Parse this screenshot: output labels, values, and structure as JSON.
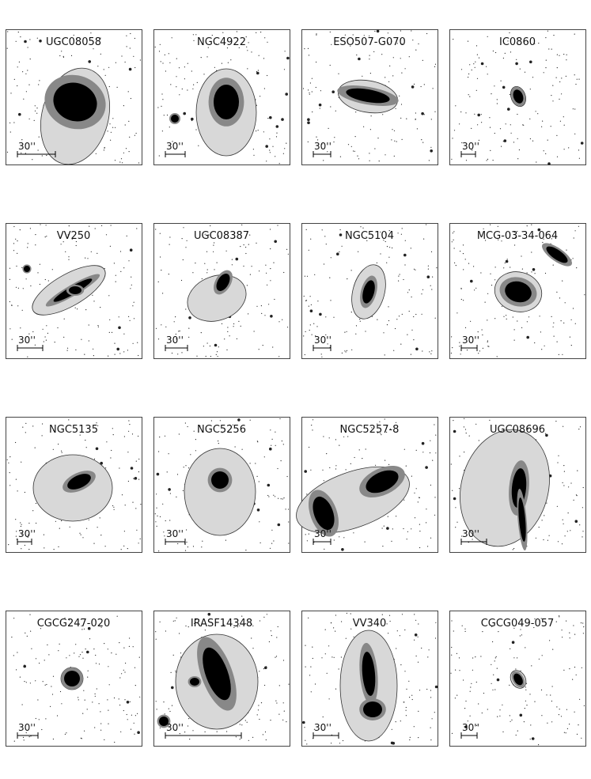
{
  "panels": [
    {
      "label": "UGC08058",
      "scale": "30''"
    },
    {
      "label": "NGC4922",
      "scale": "30''"
    },
    {
      "label": "ESO507-G070",
      "scale": "30''"
    },
    {
      "label": "IC0860",
      "scale": "30''"
    },
    {
      "label": "VV250",
      "scale": "30''"
    },
    {
      "label": "UGC08387",
      "scale": "30''"
    },
    {
      "label": "NGC5104",
      "scale": "30''"
    },
    {
      "label": "MCG-03-34-064",
      "scale": "30''"
    },
    {
      "label": "NGC5135",
      "scale": "30''"
    },
    {
      "label": "NGC5256",
      "scale": "30''"
    },
    {
      "label": "NGC5257-8",
      "scale": "30''"
    },
    {
      "label": "UGC08696",
      "scale": "30''"
    },
    {
      "label": "CGCG247-020",
      "scale": "30''"
    },
    {
      "label": "IRASF14348",
      "scale": "30''"
    },
    {
      "label": "VV340",
      "scale": "30''"
    },
    {
      "label": "CGCG049-057",
      "scale": "30''"
    }
  ]
}
